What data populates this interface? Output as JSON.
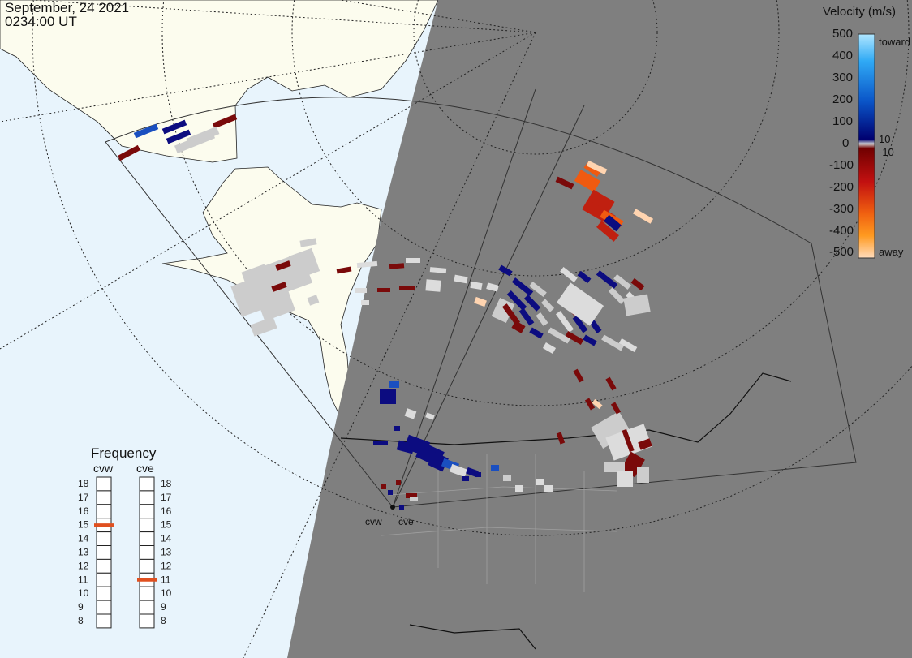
{
  "timestamp": {
    "date": "September, 24 2021",
    "time": "0234:00 UT"
  },
  "colors": {
    "ocean": "#e8f4fc",
    "land": "#fcfcee",
    "night": "#7f7f7f",
    "ground_scatter": "#cccccc",
    "selected_frequency": "#e05020"
  },
  "velocity_scale": {
    "title": "Velocity (m/s)",
    "ticks": [
      "500",
      "400",
      "300",
      "200",
      "100",
      "0",
      "-100",
      "-200",
      "-300",
      "-400",
      "-500"
    ],
    "extra_labels": {
      "toward": "toward",
      "away": "away",
      "plus10": "10",
      "minus10": "-10"
    }
  },
  "frequency_panel": {
    "title": "Frequency",
    "radars": [
      {
        "name": "cvw",
        "selected_mhz": 15
      },
      {
        "name": "cve",
        "selected_mhz": 11
      }
    ],
    "ticks": [
      "18",
      "17",
      "16",
      "15",
      "14",
      "13",
      "12",
      "11",
      "10",
      "9",
      "8"
    ]
  },
  "site_labels": [
    "cvw",
    "cve"
  ]
}
